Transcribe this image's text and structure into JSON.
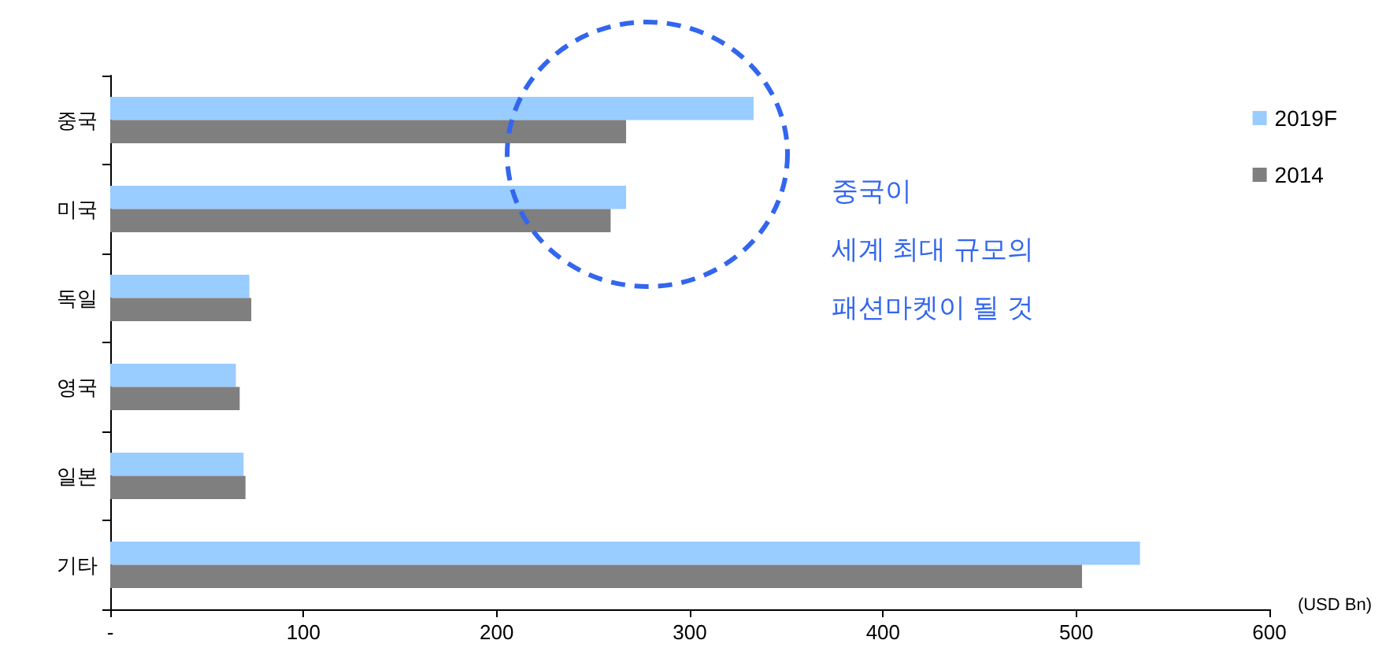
{
  "chart_data": {
    "type": "bar",
    "orientation": "horizontal",
    "categories": [
      "중국",
      "미국",
      "독일",
      "영국",
      "일본",
      "기타"
    ],
    "series": [
      {
        "name": "2019F",
        "color": "#99ccff",
        "values": [
          333,
          267,
          72,
          65,
          69,
          533
        ]
      },
      {
        "name": "2014",
        "color": "#7f7f7f",
        "values": [
          267,
          259,
          73,
          67,
          70,
          503
        ]
      }
    ],
    "xlim": [
      0,
      600
    ],
    "xticks": [
      {
        "value": 0,
        "label": "-"
      },
      100,
      200,
      300,
      400,
      500,
      600
    ],
    "grid": false,
    "legend": "right",
    "annotations": [
      "(USD Bn)",
      "중국이\n세계 최대 규모의\n패션마켓이 될 것"
    ]
  }
}
